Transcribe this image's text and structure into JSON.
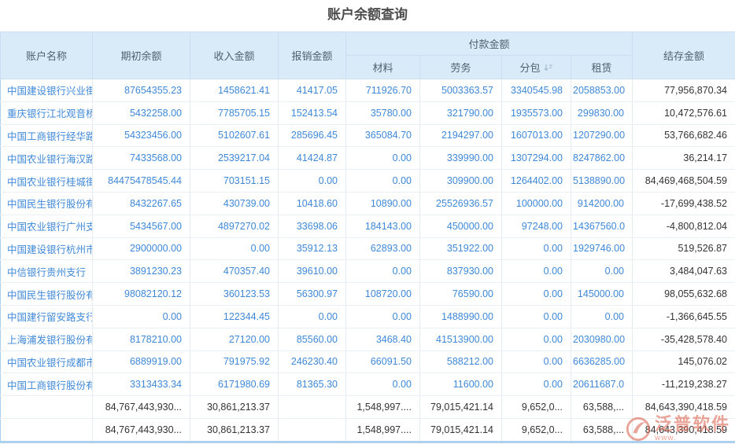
{
  "page": {
    "title": "账户余额查询"
  },
  "colors": {
    "header_bg": "#d9eaf8",
    "header_text": "#51606e",
    "data_text_blue": "#3f88d8",
    "balance_text": "#333333",
    "grid_line": "#e3ebf2",
    "outer_border": "#abd1ee",
    "bottom_bar": "#aad2f0",
    "watermark": "#dd6b58"
  },
  "icons": {
    "subcontract_sort": "sort-descending-icon",
    "watermark_logo": "fanpu-logo-icon"
  },
  "table": {
    "columns": {
      "account": "账户名称",
      "beginning": "期初余额",
      "income": "收入金额",
      "reimburse": "报销金额",
      "payment_group": "付款金额",
      "material": "材料",
      "labor": "劳务",
      "subcontract": "分包",
      "rent": "租赁",
      "balance": "结存金额"
    },
    "rows": [
      {
        "account": "中国建设银行兴业街",
        "beginning": "87654355.23",
        "income": "1458621.41",
        "reimburse": "41417.05",
        "material": "711926.70",
        "labor": "5003363.57",
        "subcontract": "3340545.98",
        "rent": "2058853.00",
        "balance": "77,956,870.34"
      },
      {
        "account": "重庆银行江北观音桥",
        "beginning": "5432258.00",
        "income": "7785705.15",
        "reimburse": "152413.54",
        "material": "35780.00",
        "labor": "321790.00",
        "subcontract": "1935573.00",
        "rent": "299830.00",
        "balance": "10,472,576.61"
      },
      {
        "account": "中国工商银行经华路",
        "beginning": "54323456.00",
        "income": "5102607.61",
        "reimburse": "285696.45",
        "material": "365084.70",
        "labor": "2194297.00",
        "subcontract": "1607013.00",
        "rent": "1207290.00",
        "balance": "53,766,682.46"
      },
      {
        "account": "中国农业银行海汉路",
        "beginning": "7433568.00",
        "income": "2539217.04",
        "reimburse": "41424.87",
        "material": "0.00",
        "labor": "339990.00",
        "subcontract": "1307294.00",
        "rent": "8247862.00",
        "balance": "36,214.17"
      },
      {
        "account": "中国农业银行桂城街",
        "beginning": "84475478545.44",
        "income": "703151.15",
        "reimburse": "0.00",
        "material": "0.00",
        "labor": "309900.00",
        "subcontract": "1264402.00",
        "rent": "5138890.00",
        "balance": "84,469,468,504.59"
      },
      {
        "account": "中国民生银行股份有",
        "beginning": "8432267.65",
        "income": "430739.00",
        "reimburse": "10418.60",
        "material": "10890.00",
        "labor": "25526936.57",
        "subcontract": "100000.00",
        "rent": "914200.00",
        "balance": "-17,699,438.52"
      },
      {
        "account": "中国农业银行广州支",
        "beginning": "5434567.00",
        "income": "4897270.02",
        "reimburse": "33698.06",
        "material": "184143.00",
        "labor": "450000.00",
        "subcontract": "97248.00",
        "rent": "14367560.0",
        "balance": "-4,800,812.04"
      },
      {
        "account": "中国建设银行杭州市",
        "beginning": "2900000.00",
        "income": "0.00",
        "reimburse": "35912.13",
        "material": "62893.00",
        "labor": "351922.00",
        "subcontract": "0.00",
        "rent": "1929746.00",
        "balance": "519,526.87"
      },
      {
        "account": "中信银行贵州支行",
        "beginning": "3891230.23",
        "income": "470357.40",
        "reimburse": "39610.00",
        "material": "0.00",
        "labor": "837930.00",
        "subcontract": "0.00",
        "rent": "0.00",
        "balance": "3,484,047.63"
      },
      {
        "account": "中国民生银行股份有",
        "beginning": "98082120.12",
        "income": "360123.53",
        "reimburse": "56300.97",
        "material": "108720.00",
        "labor": "76590.00",
        "subcontract": "0.00",
        "rent": "145000.00",
        "balance": "98,055,632.68"
      },
      {
        "account": "中国建行留安路支行",
        "beginning": "0.00",
        "income": "122344.45",
        "reimburse": "0.00",
        "material": "0.00",
        "labor": "1488990.00",
        "subcontract": "0.00",
        "rent": "0.00",
        "balance": "-1,366,645.55"
      },
      {
        "account": "上海浦发银行股份有",
        "beginning": "8178210.00",
        "income": "27120.00",
        "reimburse": "85560.00",
        "material": "3468.40",
        "labor": "41513900.00",
        "subcontract": "0.00",
        "rent": "2030980.00",
        "balance": "-35,428,578.40"
      },
      {
        "account": "中国农业银行成都市",
        "beginning": "6889919.00",
        "income": "791975.92",
        "reimburse": "246230.40",
        "material": "66091.50",
        "labor": "588212.00",
        "subcontract": "0.00",
        "rent": "6636285.00",
        "balance": "145,076.02"
      },
      {
        "account": "中国工商银行股份有",
        "beginning": "3313433.34",
        "income": "6171980.69",
        "reimburse": "81365.30",
        "material": "0.00",
        "labor": "11600.00",
        "subcontract": "0.00",
        "rent": "20611687.0",
        "balance": "-11,219,238.27"
      }
    ],
    "totals": [
      {
        "account": "",
        "beginning": "84,767,443,930...",
        "income": "30,861,213.37",
        "reimburse": "",
        "material": "1,548,997....",
        "labor": "79,015,421.14",
        "subcontract": "9,652,0...",
        "rent": "63,588,...",
        "balance": "84,643,390,418.59"
      },
      {
        "account": "",
        "beginning": "84,767,443,930...",
        "income": "30,861,213.37",
        "reimburse": "",
        "material": "1,548,997....",
        "labor": "79,015,421.14",
        "subcontract": "9,652,0...",
        "rent": "63,588,...",
        "balance": "84,643,390,418.59"
      }
    ]
  },
  "watermark": {
    "brand": "泛普软件",
    "url_fragment": "www."
  }
}
